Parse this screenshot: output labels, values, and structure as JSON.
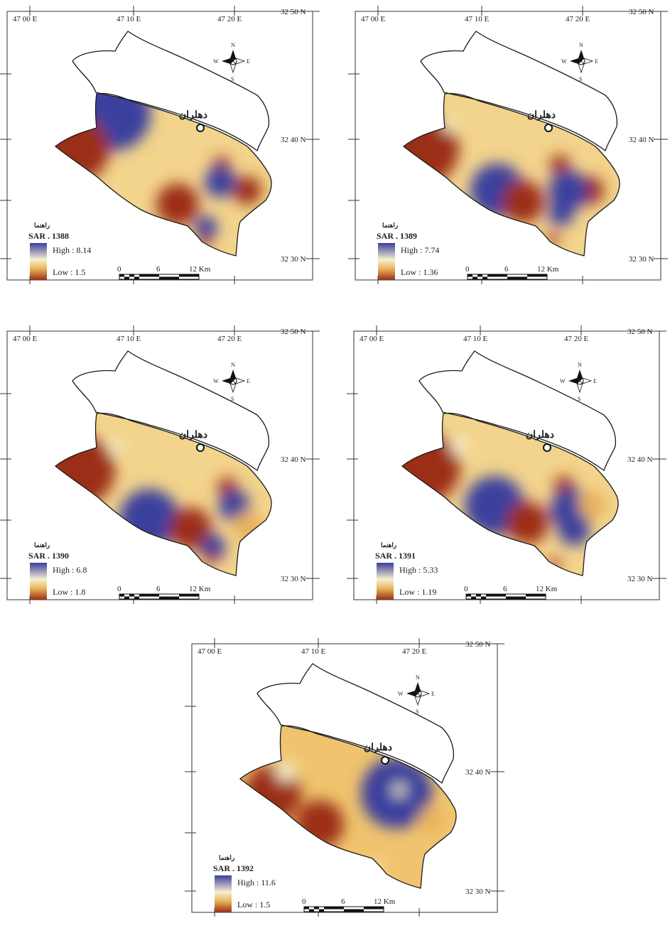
{
  "colors": {
    "high": "#3b3f9e",
    "mid": "#f7f0cf",
    "mid_warm": "#e9b35a",
    "low": "#9b2e16",
    "outline": "#1a1a1a"
  },
  "axis": {
    "lon_labels": [
      "47 00 E",
      "47 10 E",
      "47 20 E"
    ],
    "lat_labels": [
      "32 50 N",
      "32 40 N",
      "32 30 N"
    ]
  },
  "compass": {
    "n": "N",
    "s": "S",
    "e": "E",
    "w": "W",
    "icon": "compass-rose-icon"
  },
  "city": {
    "label": "دهلران",
    "icon": "city-circle-icon"
  },
  "legend_heading": "راهنما",
  "scale_bar": {
    "ticks": [
      "0",
      "6",
      "12 Km"
    ]
  },
  "maps": [
    {
      "title": "SAR . 1388",
      "high_label": "High : 8.14",
      "low_label": "Low : 1.5",
      "high_value": 8.14,
      "low_value": 1.5
    },
    {
      "title": "SAR . 1389",
      "high_label": "High : 7.74",
      "low_label": "Low : 1.36",
      "high_value": 7.74,
      "low_value": 1.36
    },
    {
      "title": "SAR . 1390",
      "high_label": "High : 6.8",
      "low_label": "Low : 1.8",
      "high_value": 6.8,
      "low_value": 1.8
    },
    {
      "title": "SAR . 1391",
      "high_label": "High : 5.33",
      "low_label": "Low : 1.19",
      "high_value": 5.33,
      "low_value": 1.19
    },
    {
      "title": "SAR . 1392",
      "high_label": "High : 11.6",
      "low_label": "Low : 1.5",
      "high_value": 11.6,
      "low_value": 1.5
    }
  ]
}
